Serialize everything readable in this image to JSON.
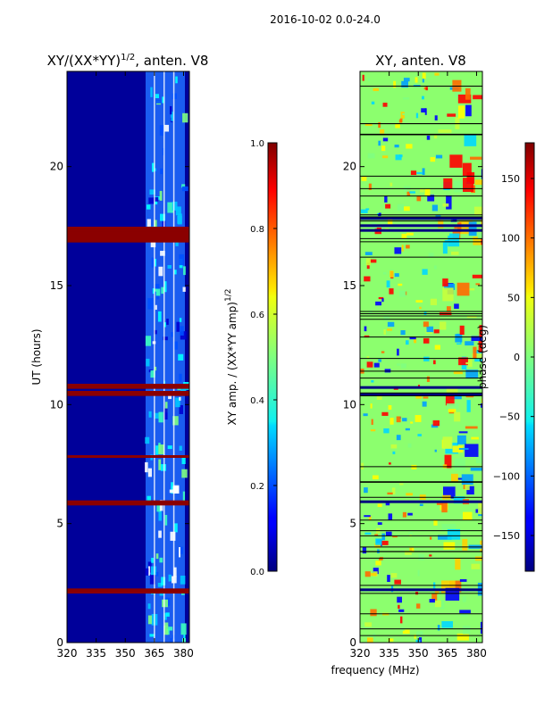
{
  "figure": {
    "suptitle": "2016-10-02 0.0-24.0",
    "xlabel": "frequency (MHz)"
  },
  "chart_data": [
    {
      "type": "heatmap",
      "title": "XY/(XX*YY)",
      "title_sup": "1/2",
      "title_suffix": ", anten. V8",
      "xlabel": "",
      "ylabel": "UT (hours)",
      "xlim": [
        320,
        383
      ],
      "ylim": [
        0,
        24
      ],
      "xticks": [
        320,
        335,
        350,
        365,
        380
      ],
      "yticks": [
        0,
        5,
        10,
        15,
        20
      ],
      "colormap": "jet",
      "colorbar": {
        "label": "XY amp. / (XX*YY amp)",
        "label_sup": "1/2",
        "range": [
          0.0,
          1.0
        ],
        "ticks": [
          "0.0",
          "0.2",
          "0.4",
          "0.6",
          "0.8",
          "1.0"
        ]
      },
      "flagged_hours": [
        16.85,
        16.95,
        17.05,
        17.1,
        17.2,
        17.3,
        17.4,
        10.4,
        10.5,
        10.7,
        10.8,
        5.8,
        5.9,
        2.1,
        2.2,
        7.8
      ],
      "notes": "Background ~0.05 (dark blue); higher amplitude (0.3-0.9) in 360-380 MHz band"
    },
    {
      "type": "heatmap",
      "title": "XY, anten. V8",
      "xlabel": "",
      "ylabel": "",
      "xlim": [
        320,
        383
      ],
      "ylim": [
        0,
        24
      ],
      "xticks": [
        320,
        335,
        350,
        365,
        380
      ],
      "yticks": [
        0,
        5,
        10,
        15,
        20
      ],
      "colormap": "jet",
      "colorbar": {
        "label": "phase (deg)",
        "range": [
          -180,
          180
        ],
        "ticks": [
          "150",
          "100",
          "50",
          "0",
          "−50",
          "−100",
          "−150"
        ]
      },
      "flagged_hours": [
        17.3,
        17.5,
        17.8,
        10.4,
        10.7,
        5.9,
        2.2
      ],
      "notes": "Phase mostly near 0 deg with large variations above 360 MHz"
    }
  ]
}
